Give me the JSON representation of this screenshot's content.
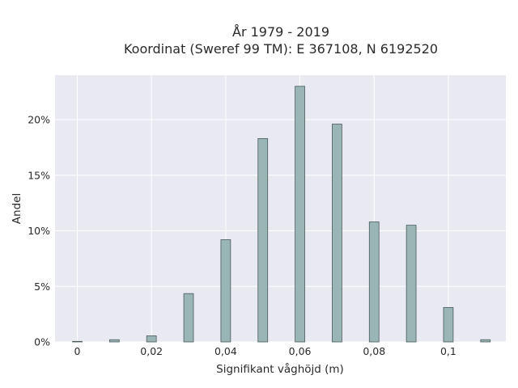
{
  "chart_data": {
    "type": "bar",
    "title_lines": [
      "År 1979 - 2019",
      "Koordinat (Sweref 99 TM): E 367108, N 6192520"
    ],
    "xlabel": "Signifikant våghöjd (m)",
    "ylabel": "Andel",
    "x": [
      0,
      0.01,
      0.02,
      0.03,
      0.04,
      0.05,
      0.06,
      0.07,
      0.08,
      0.09,
      0.1,
      0.11
    ],
    "values": [
      0.05,
      0.2,
      0.55,
      4.35,
      9.2,
      18.3,
      23.0,
      19.6,
      10.8,
      10.5,
      3.1,
      0.2
    ],
    "xlim": [
      -0.006,
      0.1155
    ],
    "ylim": [
      0,
      24
    ],
    "xticks": [
      {
        "value": 0,
        "label": "0"
      },
      {
        "value": 0.02,
        "label": "0,02"
      },
      {
        "value": 0.04,
        "label": "0,04"
      },
      {
        "value": 0.06,
        "label": "0,06"
      },
      {
        "value": 0.08,
        "label": "0,08"
      },
      {
        "value": 0.1,
        "label": "0,1"
      }
    ],
    "yticks": [
      {
        "value": 0,
        "label": "0%"
      },
      {
        "value": 5,
        "label": "5%"
      },
      {
        "value": 10,
        "label": "10%"
      },
      {
        "value": 15,
        "label": "15%"
      },
      {
        "value": 20,
        "label": "20%"
      }
    ],
    "grid": true,
    "colors": {
      "plot_bg": "#e9e9f1",
      "grid": "#ffffff",
      "bar_fill": "#9ab5b5",
      "bar_stroke": "#4a5a5a"
    }
  }
}
